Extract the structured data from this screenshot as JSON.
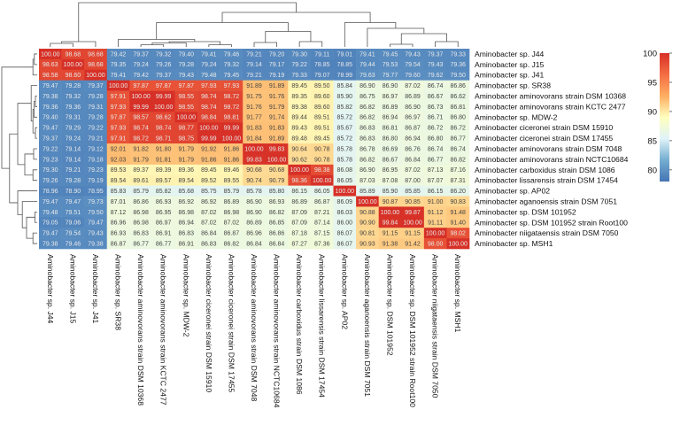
{
  "chart_data": {
    "type": "heatmap",
    "title": "",
    "rows": [
      "Aminobacter sp. J44",
      "Aminobacter sp. J15",
      "Aminobacter sp. J41",
      "Aminobacter sp. SR38",
      "Aminobacter aminovorans strain DSM 10368",
      "Aminobacter aminovorans strain KCTC 2477",
      "Aminobacter sp. MDW-2",
      "Aminobacter ciceronei strain DSM 15910",
      "Aminobacter ciceronei strain DSM 17455",
      "Aminobacter aminovorans strain DSM 7048",
      "Aminobacter aminovorans strain NCTC10684",
      "Aminobacter carboxidus strain DSM 1086",
      "Aminobacter lissarensis strain DSM 17454",
      "Aminobacter sp. AP02",
      "Aminobacter aganoensis strain DSM 7051",
      "Aminobacter sp. DSM 101952",
      "Aminobacter sp. DSM 101952 strain Root100",
      "Aminobacter niigataensis strain DSM 7050",
      "Aminobacter sp. MSH1"
    ],
    "columns": [
      "Aminobacter sp. J44",
      "Aminobacter sp. J15",
      "Aminobacter sp. J41",
      "Aminobacter sp. SR38",
      "Aminobacter aminovorans strain DSM 10368",
      "Aminobacter aminovorans strain KCTC 2477",
      "Aminobacter sp. MDW-2",
      "Aminobacter ciceronei strain DSM 15910",
      "Aminobacter ciceronei strain DSM 17455",
      "Aminobacter aminovorans strain DSM 7048",
      "Aminobacter aminovorans strain NCTC10684",
      "Aminobacter carboxidus strain DSM 1086",
      "Aminobacter lissarensis strain DSM 17454",
      "Aminobacter sp. AP02",
      "Aminobacter aganoensis strain DSM 7051",
      "Aminobacter sp. DSM 101952",
      "Aminobacter sp. DSM 101952 strain Root100",
      "Aminobacter niigataensis strain DSM 7050",
      "Aminobacter sp. MSH1"
    ],
    "values": [
      [
        100.0,
        98.68,
        98.68,
        79.42,
        79.37,
        79.32,
        79.4,
        79.41,
        79.46,
        79.21,
        79.2,
        79.3,
        79.11,
        79.01,
        79.41,
        79.45,
        79.43,
        79.37,
        79.33
      ],
      [
        98.63,
        100.0,
        98.68,
        79.35,
        79.24,
        79.26,
        79.28,
        79.24,
        79.32,
        79.14,
        79.17,
        79.22,
        78.85,
        78.85,
        79.44,
        79.53,
        79.54,
        79.43,
        79.36
      ],
      [
        98.58,
        98.6,
        100.0,
        79.41,
        79.42,
        79.37,
        79.43,
        79.48,
        79.45,
        79.21,
        79.19,
        79.33,
        79.07,
        78.99,
        79.63,
        79.77,
        79.6,
        79.62,
        79.5
      ],
      [
        79.47,
        79.28,
        79.37,
        100.0,
        97.87,
        97.87,
        97.87,
        97.93,
        97.93,
        91.89,
        91.89,
        89.45,
        89.5,
        85.84,
        86.9,
        86.9,
        87.02,
        86.74,
        86.86
      ],
      [
        79.38,
        79.32,
        79.28,
        97.91,
        100.0,
        99.99,
        98.55,
        98.74,
        98.72,
        91.75,
        91.76,
        89.35,
        89.6,
        85.9,
        86.75,
        86.97,
        86.89,
        86.67,
        86.62
      ],
      [
        79.36,
        79.36,
        79.31,
        97.93,
        99.99,
        100.0,
        98.55,
        98.74,
        98.72,
        91.76,
        91.79,
        89.38,
        89.6,
        85.82,
        86.82,
        86.89,
        86.9,
        86.73,
        86.81
      ],
      [
        79.4,
        79.31,
        79.28,
        97.87,
        98.57,
        98.62,
        100.0,
        98.84,
        98.81,
        91.77,
        91.74,
        89.44,
        89.51,
        85.72,
        86.82,
        86.94,
        86.97,
        86.71,
        86.8
      ],
      [
        79.47,
        79.29,
        79.22,
        97.93,
        98.74,
        98.74,
        98.77,
        100.0,
        99.99,
        91.83,
        91.83,
        89.43,
        89.51,
        85.67,
        86.83,
        86.81,
        86.87,
        86.72,
        86.72
      ],
      [
        79.37,
        79.24,
        79.21,
        97.91,
        98.72,
        98.71,
        98.75,
        99.99,
        100.0,
        91.84,
        91.89,
        89.48,
        89.45,
        85.72,
        86.83,
        86.8,
        86.94,
        86.8,
        86.77
      ],
      [
        79.22,
        79.14,
        79.12,
        92.01,
        91.82,
        91.8,
        91.79,
        91.92,
        91.86,
        100.0,
        99.83,
        90.64,
        90.78,
        85.78,
        86.78,
        86.69,
        86.76,
        86.74,
        86.74
      ],
      [
        79.23,
        79.14,
        79.18,
        92.03,
        91.79,
        91.81,
        91.79,
        91.86,
        91.86,
        99.83,
        100.0,
        90.62,
        90.78,
        85.78,
        86.82,
        86.67,
        86.84,
        86.77,
        86.82
      ],
      [
        79.3,
        79.21,
        79.23,
        89.53,
        89.37,
        89.39,
        89.36,
        89.45,
        89.46,
        90.68,
        90.68,
        100.0,
        98.38,
        86.08,
        86.9,
        86.95,
        87.02,
        87.13,
        87.16
      ],
      [
        79.26,
        79.28,
        79.19,
        89.54,
        89.61,
        89.57,
        89.54,
        89.52,
        89.55,
        90.74,
        90.79,
        98.36,
        100.0,
        86.05,
        87.03,
        87.08,
        87.0,
        87.07,
        87.31
      ],
      [
        78.96,
        78.9,
        78.95,
        85.83,
        85.79,
        85.82,
        85.68,
        85.75,
        85.79,
        85.78,
        85.8,
        86.15,
        86.05,
        100.0,
        85.89,
        85.9,
        85.85,
        86.15,
        86.2
      ],
      [
        79.47,
        79.47,
        79.73,
        87.01,
        86.86,
        86.93,
        86.92,
        86.92,
        86.89,
        86.9,
        86.93,
        86.89,
        86.87,
        86.09,
        100.0,
        90.87,
        90.85,
        91.0,
        90.83
      ],
      [
        79.48,
        79.51,
        79.5,
        87.12,
        86.98,
        86.95,
        86.98,
        87.02,
        86.98,
        86.9,
        86.82,
        87.09,
        87.21,
        86.03,
        90.88,
        100.0,
        99.87,
        91.12,
        91.48
      ],
      [
        79.05,
        79.06,
        79.47,
        86.96,
        86.98,
        86.97,
        86.94,
        87.02,
        87.02,
        86.89,
        86.85,
        87.09,
        87.14,
        86.0,
        90.9,
        99.84,
        100.0,
        91.11,
        91.4
      ],
      [
        79.47,
        79.54,
        79.43,
        86.93,
        86.83,
        86.91,
        86.83,
        86.84,
        86.87,
        86.96,
        86.86,
        87.18,
        87.15,
        86.07,
        90.81,
        91.15,
        91.15,
        100.0,
        98.02
      ],
      [
        79.38,
        79.46,
        79.38,
        86.87,
        86.77,
        86.77,
        86.91,
        86.83,
        86.82,
        86.84,
        86.84,
        87.27,
        87.36,
        86.07,
        90.93,
        91.38,
        91.42,
        98.0,
        100.0
      ]
    ],
    "value_range": [
      78,
      100
    ],
    "colorbar": {
      "ticks": [
        80,
        85,
        90,
        95,
        100
      ],
      "colors": [
        "#4575b4",
        "#74add1",
        "#e0f3f8",
        "#ffffbf",
        "#fdae61",
        "#f46d43",
        "#d73027"
      ]
    },
    "legend_position": "right"
  }
}
